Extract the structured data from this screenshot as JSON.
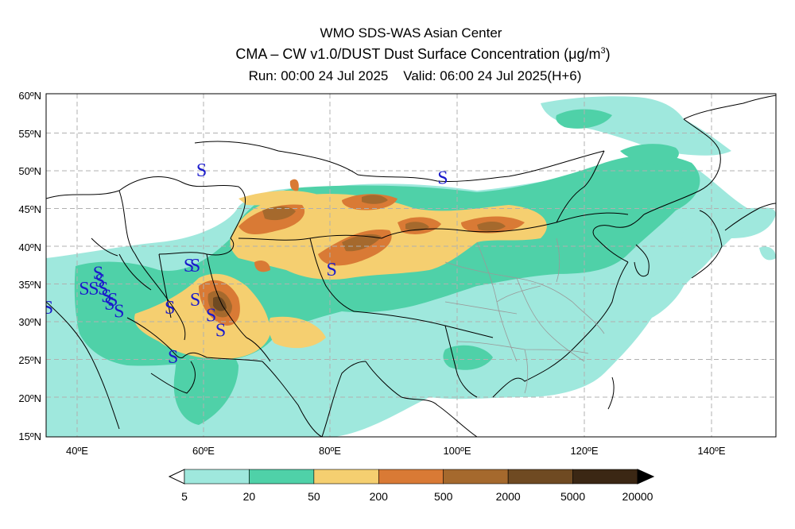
{
  "header": {
    "line1": "WMO SDS-WAS Asian Center",
    "line2_main": "CMA – CW v1.0/DUST Dust Surface Concentration (μg/m",
    "line2_sup": "3",
    "line2_end": ")",
    "line3": "Run: 00:00 24 Jul 2025    Valid: 06:00 24 Jul 2025(H+6)"
  },
  "map": {
    "lon_range": [
      35,
      150
    ],
    "lat_range": [
      15,
      60
    ],
    "lat_ticks": [
      "15ºN",
      "20ºN",
      "25ºN",
      "30ºN",
      "35ºN",
      "40ºN",
      "45ºN",
      "50ºN",
      "55ºN",
      "60ºN"
    ],
    "lon_ticks": [
      "40ºE",
      "60ºE",
      "80ºE",
      "100ºE",
      "120ºE",
      "140ºE"
    ],
    "grid": true,
    "dust_storm_symbol": "S",
    "dust_storm_locations": [
      {
        "lon": 35.3,
        "lat": 32
      },
      {
        "lon": 41,
        "lat": 34.5
      },
      {
        "lon": 42.5,
        "lat": 34.5
      },
      {
        "lon": 43.2,
        "lat": 36.5
      },
      {
        "lon": 43.5,
        "lat": 35.5
      },
      {
        "lon": 44,
        "lat": 34.5
      },
      {
        "lon": 44.5,
        "lat": 33.5
      },
      {
        "lon": 45,
        "lat": 32.5
      },
      {
        "lon": 45.5,
        "lat": 33
      },
      {
        "lon": 46.5,
        "lat": 31.5
      },
      {
        "lon": 54.5,
        "lat": 32
      },
      {
        "lon": 55,
        "lat": 25.5
      },
      {
        "lon": 57.5,
        "lat": 37.5
      },
      {
        "lon": 58.5,
        "lat": 37.5
      },
      {
        "lon": 58.5,
        "lat": 33
      },
      {
        "lon": 61,
        "lat": 31
      },
      {
        "lon": 62.5,
        "lat": 29
      },
      {
        "lon": 59.5,
        "lat": 50
      },
      {
        "lon": 80,
        "lat": 37
      },
      {
        "lon": 97.5,
        "lat": 49
      }
    ]
  },
  "legend": {
    "levels": [
      "5",
      "20",
      "50",
      "200",
      "500",
      "2000",
      "5000",
      "20000"
    ],
    "colors": [
      "#9fe8dd",
      "#4fd1a8",
      "#f5cf70",
      "#d97a35",
      "#a5692d",
      "#6f4a22",
      "#3b2714"
    ]
  }
}
